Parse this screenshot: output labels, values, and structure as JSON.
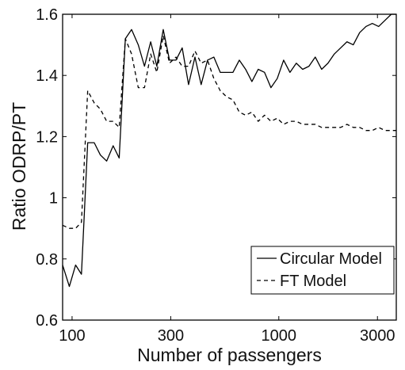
{
  "chart_data": {
    "type": "line",
    "title": "",
    "xlabel": "Number of passengers",
    "ylabel": "Ratio ODRP/PT",
    "xscale": "log",
    "xlim": [
      90,
      3700
    ],
    "ylim": [
      0.6,
      1.6
    ],
    "xticks": [
      100,
      300,
      1000,
      3000
    ],
    "xtick_labels": [
      "100",
      "300",
      "1000",
      "3000"
    ],
    "yticks": [
      0.6,
      0.8,
      1.0,
      1.2,
      1.4,
      1.6
    ],
    "ytick_labels": [
      "0.6",
      "0.8",
      "1",
      "1.2",
      "1.4",
      "1.6"
    ],
    "grid": false,
    "legend_position": "bottom-right",
    "series": [
      {
        "name": "Circular Model",
        "style": "solid",
        "color": "#000000",
        "x": [
          90,
          97,
          104,
          111,
          119,
          128,
          137,
          147,
          158,
          169,
          181,
          194,
          209,
          224,
          240,
          257,
          276,
          296,
          318,
          341,
          366,
          393,
          421,
          452,
          485,
          521,
          559,
          600,
          644,
          691,
          741,
          795,
          853,
          916,
          983,
          1055,
          1132,
          1215,
          1304,
          1399,
          1501,
          1611,
          1729,
          1855,
          1991,
          2136,
          2292,
          2460,
          2640,
          2833,
          3040,
          3262,
          3500,
          3700
        ],
        "y": [
          0.78,
          0.71,
          0.78,
          0.75,
          1.18,
          1.18,
          1.14,
          1.12,
          1.17,
          1.13,
          1.52,
          1.55,
          1.5,
          1.43,
          1.51,
          1.43,
          1.55,
          1.45,
          1.45,
          1.49,
          1.37,
          1.46,
          1.37,
          1.45,
          1.46,
          1.41,
          1.41,
          1.41,
          1.45,
          1.42,
          1.38,
          1.42,
          1.41,
          1.36,
          1.39,
          1.45,
          1.41,
          1.44,
          1.42,
          1.43,
          1.46,
          1.42,
          1.44,
          1.47,
          1.49,
          1.51,
          1.5,
          1.54,
          1.56,
          1.57,
          1.56,
          1.58,
          1.6,
          1.6
        ]
      },
      {
        "name": "FT Model",
        "style": "dashed",
        "color": "#000000",
        "x": [
          90,
          97,
          104,
          111,
          119,
          128,
          137,
          147,
          158,
          169,
          181,
          194,
          209,
          224,
          240,
          257,
          276,
          296,
          318,
          341,
          366,
          393,
          421,
          452,
          485,
          521,
          559,
          600,
          644,
          691,
          741,
          795,
          853,
          916,
          983,
          1055,
          1132,
          1215,
          1304,
          1399,
          1501,
          1611,
          1729,
          1855,
          1991,
          2136,
          2292,
          2460,
          2640,
          2833,
          3040,
          3262,
          3500,
          3700
        ],
        "y": [
          0.91,
          0.9,
          0.9,
          0.92,
          1.35,
          1.31,
          1.29,
          1.25,
          1.25,
          1.23,
          1.52,
          1.47,
          1.36,
          1.36,
          1.47,
          1.41,
          1.53,
          1.44,
          1.46,
          1.43,
          1.43,
          1.48,
          1.44,
          1.45,
          1.39,
          1.35,
          1.33,
          1.32,
          1.28,
          1.27,
          1.28,
          1.25,
          1.27,
          1.25,
          1.26,
          1.24,
          1.25,
          1.25,
          1.24,
          1.24,
          1.24,
          1.23,
          1.23,
          1.23,
          1.23,
          1.24,
          1.23,
          1.23,
          1.22,
          1.22,
          1.23,
          1.22,
          1.22,
          1.22
        ]
      }
    ]
  }
}
